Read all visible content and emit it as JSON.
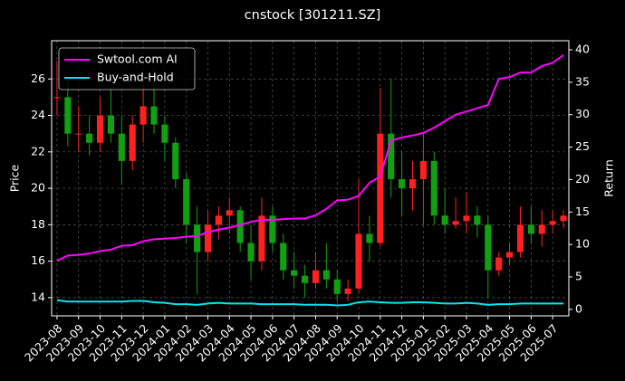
{
  "chart_data": {
    "type": "candlestick",
    "title": "cnstock [301211.SZ]",
    "ylabel": "Price",
    "y2label": "Return",
    "categories": [
      "2023-08",
      null,
      "2023-09",
      null,
      "2023-10",
      null,
      "2023-11",
      null,
      "2023-12",
      null,
      "2024-01",
      null,
      "2024-02",
      null,
      "2024-03",
      null,
      "2024-04",
      null,
      "2024-05",
      null,
      "2024-06",
      null,
      "2024-07",
      null,
      "2024-08",
      null,
      "2024-09",
      null,
      "2024-10",
      null,
      "2024-11",
      null,
      "2024-12",
      null,
      "2025-01",
      null,
      "2025-02",
      null,
      "2025-03",
      null,
      "2025-04",
      null,
      "2025-05",
      null,
      "2025-06",
      null,
      "2025-07",
      null
    ],
    "open": [
      25,
      25,
      23,
      23,
      22.5,
      24,
      23,
      21.5,
      23.5,
      24.5,
      23.5,
      22.5,
      20.5,
      18,
      16.5,
      18,
      18.5,
      18.8,
      17,
      16,
      18.5,
      17,
      15.5,
      15.2,
      14.8,
      15.5,
      15,
      14.2,
      14.5,
      17.5,
      17,
      23,
      20.5,
      20,
      20.5,
      21.5,
      18.5,
      18,
      18.2,
      18.5,
      18,
      15.5,
      16.2,
      16.5,
      18,
      17.5,
      18,
      18.2
    ],
    "high": [
      27,
      26,
      24.5,
      24,
      25,
      25.5,
      24,
      24,
      26,
      26.5,
      24,
      22.8,
      20.8,
      19,
      18.8,
      19,
      19.5,
      19,
      18,
      19.5,
      19,
      17.5,
      16.5,
      15.8,
      16.5,
      17,
      15.5,
      15,
      20.5,
      18.5,
      25.5,
      26,
      22,
      21.5,
      23,
      22,
      20,
      19.5,
      19.8,
      19,
      18.5,
      16.5,
      17,
      19,
      19,
      18.8,
      18.8,
      18.8
    ],
    "low": [
      24,
      22.3,
      22,
      21.8,
      22,
      22.5,
      20.2,
      21,
      22.5,
      23,
      21.5,
      20,
      17,
      14.2,
      16,
      17.2,
      17.5,
      16.5,
      15,
      15.5,
      16.5,
      15,
      14.5,
      14,
      14.5,
      14.5,
      13.8,
      13.8,
      14.2,
      16,
      16.8,
      19.5,
      18.5,
      18.8,
      18,
      18,
      17.5,
      17.8,
      17.5,
      17.3,
      14,
      15.2,
      15.8,
      16.2,
      17,
      16.8,
      17.5,
      17.8
    ],
    "close": [
      25,
      23,
      23,
      22.5,
      24,
      23,
      21.5,
      23.5,
      24.5,
      23.5,
      22.5,
      20.5,
      18,
      16.5,
      18,
      18.5,
      18.8,
      17,
      16,
      18.5,
      17,
      15.5,
      15.2,
      14.8,
      15.5,
      15,
      14.2,
      14.5,
      17.5,
      17,
      23,
      20.5,
      20,
      20.5,
      21.5,
      18.5,
      18,
      18.2,
      18.5,
      18,
      15.5,
      16.2,
      16.5,
      18,
      17.5,
      18,
      18.2,
      18.5
    ],
    "up_color": "#ff2020",
    "down_color": "#10a010",
    "ylim": [
      13.0,
      28.1
    ],
    "yticks": [
      14,
      16,
      18,
      20,
      22,
      24,
      26
    ],
    "y2lim": [
      -1,
      41.4
    ],
    "y2ticks": [
      0,
      5,
      10,
      15,
      20,
      25,
      30,
      35,
      40
    ],
    "series": [
      {
        "name": "Swtool.com AI",
        "color": "#ff00ff",
        "axis": "y2",
        "values": [
          7.5,
          8.3,
          8.4,
          8.6,
          9.0,
          9.2,
          9.8,
          9.9,
          10.5,
          10.8,
          10.9,
          11.0,
          11.2,
          11.3,
          11.9,
          12.3,
          12.6,
          13.0,
          13.5,
          13.8,
          13.8,
          13.9,
          14.0,
          14.0,
          14.5,
          15.5,
          16.8,
          16.9,
          17.5,
          19.5,
          20.5,
          26.0,
          26.5,
          26.8,
          27.2,
          28.0,
          29.0,
          30.0,
          30.5,
          31.0,
          31.5,
          35.5,
          35.8,
          36.5,
          36.5,
          37.5,
          38.0,
          39.2
        ]
      },
      {
        "name": "Buy-and-Hold",
        "color": "#00e5ee",
        "axis": "y2",
        "values": [
          1.4,
          1.2,
          1.2,
          1.2,
          1.2,
          1.2,
          1.2,
          1.3,
          1.3,
          1.1,
          1.0,
          0.8,
          0.8,
          0.7,
          0.9,
          1.0,
          0.9,
          0.9,
          0.9,
          0.8,
          0.8,
          0.8,
          0.8,
          0.7,
          0.7,
          0.7,
          0.6,
          0.7,
          1.1,
          1.2,
          1.1,
          1.0,
          1.0,
          1.1,
          1.1,
          1.0,
          0.9,
          0.9,
          1.0,
          0.9,
          0.7,
          0.8,
          0.8,
          0.9,
          0.9,
          0.9,
          0.9,
          0.9
        ]
      }
    ],
    "legend": "upper left",
    "grid": true
  }
}
